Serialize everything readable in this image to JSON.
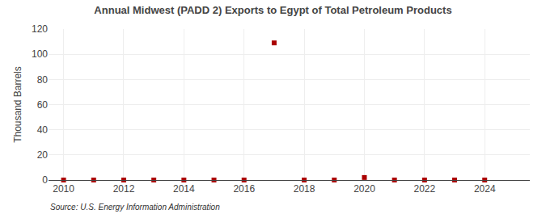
{
  "chart_data": {
    "type": "scatter",
    "title": "Annual Midwest (PADD 2) Exports to Egypt of Total Petroleum Products",
    "ylabel": "Thousand Barrels",
    "annotations": [
      "Source: U.S. Energy Information Administration"
    ],
    "x": [
      2010,
      2011,
      2012,
      2013,
      2014,
      2015,
      2016,
      2017,
      2018,
      2019,
      2020,
      2021,
      2022,
      2023,
      2024
    ],
    "values": [
      0,
      0,
      0,
      0,
      0,
      0,
      0,
      109,
      0,
      0,
      2,
      0,
      0,
      0,
      0
    ],
    "color": "#aa0000",
    "marker": "square",
    "xlim": [
      2009.5,
      2025.5
    ],
    "ylim": [
      0,
      120
    ],
    "xticks": [
      2010,
      2012,
      2014,
      2016,
      2018,
      2020,
      2022,
      2024
    ],
    "yticks": [
      0,
      20,
      40,
      60,
      80,
      100,
      120
    ],
    "grid": true
  }
}
